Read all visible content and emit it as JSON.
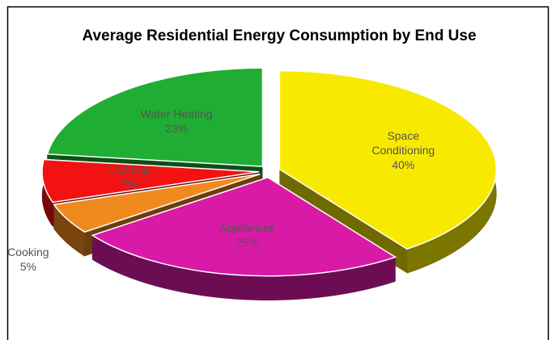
{
  "chart_data": {
    "type": "pie",
    "title": "Average Residential Energy Consumption by End Use",
    "categories": [
      "Space Conditioning",
      "Appliances",
      "Cooking",
      "Lighting",
      "Water Heating"
    ],
    "values": [
      40,
      25,
      5,
      7,
      23
    ],
    "value_labels": [
      "40%",
      "25%",
      "5%",
      "7%",
      "23%"
    ],
    "colors": [
      "#f7ea00",
      "#d81aa6",
      "#f08a1e",
      "#f21212",
      "#1fae33"
    ]
  }
}
